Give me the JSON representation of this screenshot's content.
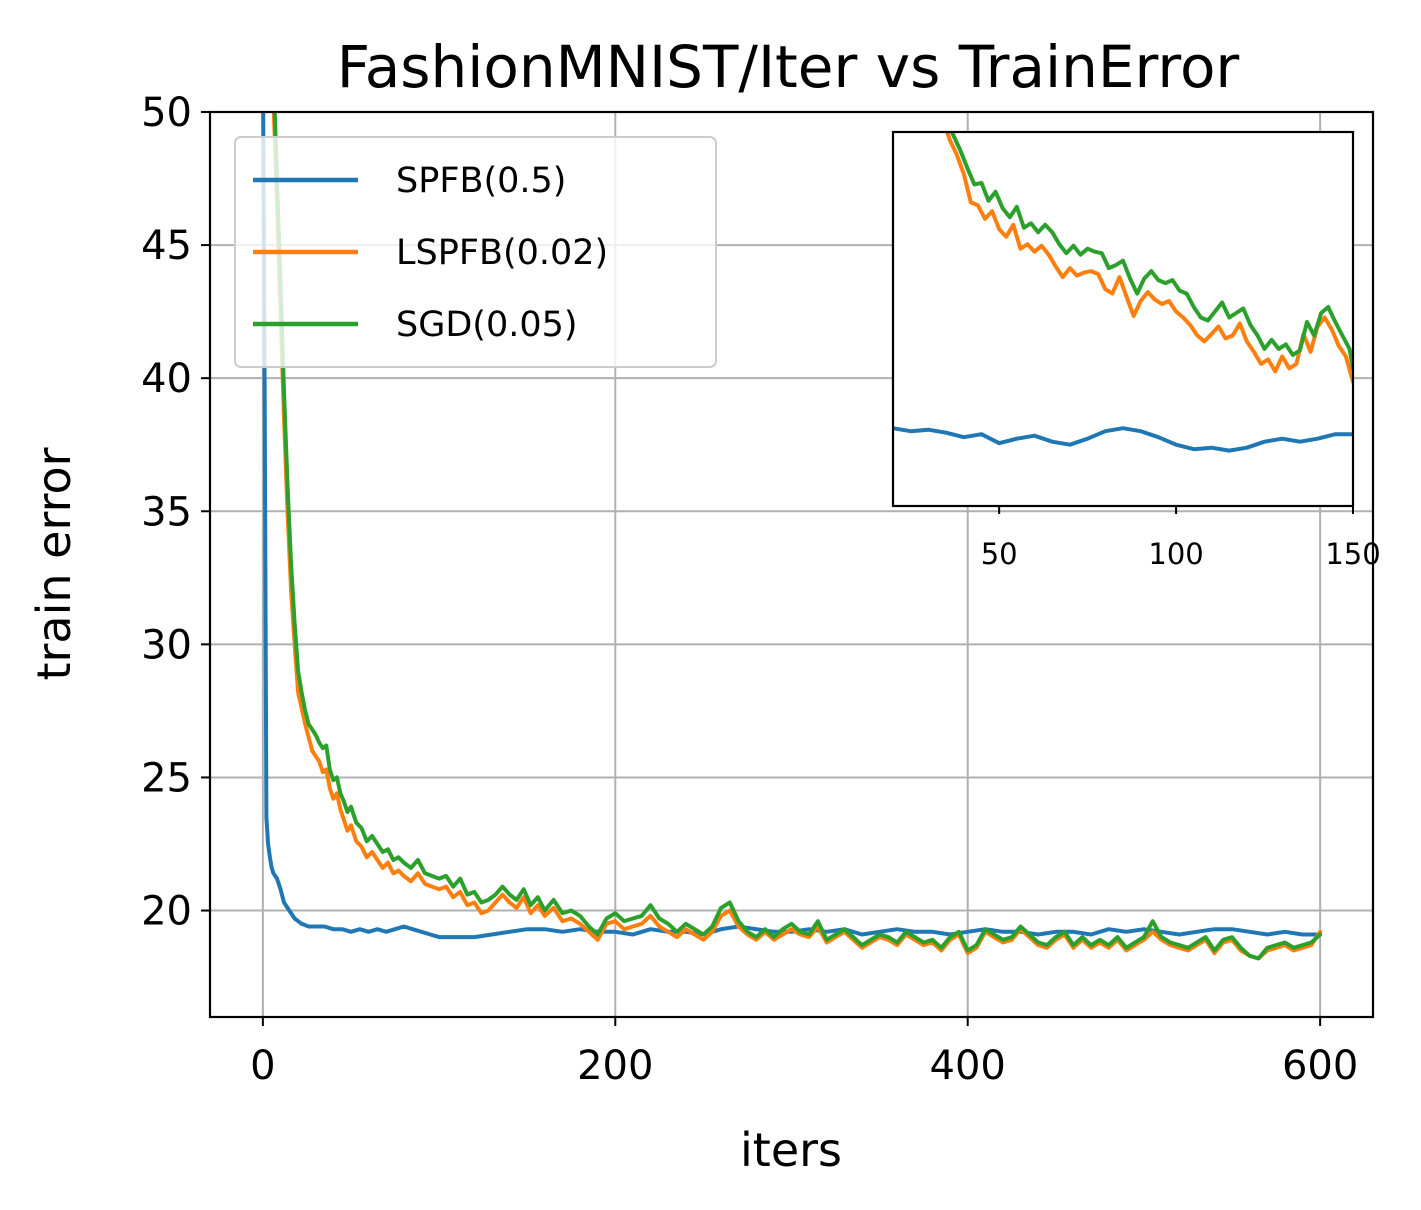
{
  "chart_data": [
    {
      "type": "line",
      "title": "FashionMNIST/Iter vs TrainError",
      "xlabel": "iters",
      "ylabel": "train error",
      "xlim": [
        -30,
        630
      ],
      "ylim": [
        16,
        50
      ],
      "xticks": [
        0,
        200,
        400,
        600
      ],
      "yticks": [
        20,
        25,
        30,
        35,
        40,
        45,
        50
      ],
      "grid": true,
      "legend": "top-left",
      "series": [
        {
          "name": "SPFB(0.5)",
          "color": "#1f77b4",
          "x": [
            0,
            1,
            2,
            3,
            4,
            5,
            6,
            8,
            10,
            12,
            15,
            18,
            22,
            26,
            30,
            35,
            40,
            45,
            50,
            55,
            60,
            65,
            70,
            75,
            80,
            85,
            90,
            95,
            100,
            110,
            120,
            130,
            140,
            150,
            160,
            170,
            180,
            190,
            200,
            210,
            220,
            230,
            240,
            250,
            260,
            270,
            280,
            290,
            300,
            310,
            320,
            330,
            340,
            350,
            360,
            370,
            380,
            390,
            400,
            410,
            420,
            430,
            440,
            450,
            460,
            470,
            480,
            490,
            500,
            510,
            520,
            530,
            540,
            550,
            560,
            570,
            580,
            590,
            600
          ],
          "y": [
            52,
            40,
            23.5,
            22.5,
            22.0,
            21.6,
            21.4,
            21.2,
            20.8,
            20.3,
            20.0,
            19.7,
            19.5,
            19.4,
            19.4,
            19.4,
            19.3,
            19.3,
            19.2,
            19.3,
            19.2,
            19.3,
            19.2,
            19.3,
            19.4,
            19.3,
            19.2,
            19.1,
            19.0,
            19.0,
            19.0,
            19.1,
            19.2,
            19.3,
            19.3,
            19.2,
            19.3,
            19.2,
            19.2,
            19.1,
            19.3,
            19.2,
            19.2,
            19.1,
            19.3,
            19.4,
            19.3,
            19.2,
            19.2,
            19.3,
            19.2,
            19.3,
            19.1,
            19.2,
            19.3,
            19.2,
            19.2,
            19.1,
            19.2,
            19.3,
            19.2,
            19.2,
            19.1,
            19.2,
            19.2,
            19.1,
            19.3,
            19.2,
            19.3,
            19.2,
            19.1,
            19.2,
            19.3,
            19.3,
            19.2,
            19.1,
            19.2,
            19.1,
            19.1
          ]
        },
        {
          "name": "LSPFB(0.02)",
          "color": "#ff7f0e",
          "x": [
            4,
            6,
            8,
            10,
            12,
            14,
            16,
            18,
            20,
            22,
            24,
            26,
            28,
            30,
            32,
            34,
            36,
            38,
            40,
            42,
            44,
            46,
            48,
            50,
            53,
            56,
            59,
            62,
            65,
            68,
            71,
            74,
            77,
            80,
            84,
            88,
            92,
            96,
            100,
            104,
            108,
            112,
            116,
            120,
            124,
            128,
            132,
            136,
            140,
            144,
            148,
            152,
            156,
            160,
            165,
            170,
            175,
            180,
            185,
            190,
            195,
            200,
            205,
            210,
            215,
            220,
            225,
            230,
            235,
            240,
            245,
            250,
            255,
            260,
            265,
            270,
            275,
            280,
            285,
            290,
            295,
            300,
            305,
            310,
            315,
            320,
            325,
            330,
            335,
            340,
            345,
            350,
            355,
            360,
            365,
            370,
            375,
            380,
            385,
            390,
            395,
            400,
            405,
            410,
            415,
            420,
            425,
            430,
            435,
            440,
            445,
            450,
            455,
            460,
            465,
            470,
            475,
            480,
            485,
            490,
            495,
            500,
            505,
            510,
            515,
            520,
            525,
            530,
            535,
            540,
            545,
            550,
            555,
            560,
            565,
            570,
            575,
            580,
            585,
            590,
            595,
            600
          ],
          "y": [
            55,
            50.5,
            46.5,
            42.5,
            38.5,
            35.0,
            32.0,
            30.0,
            28.2,
            27.6,
            27.0,
            26.5,
            26.0,
            25.8,
            25.6,
            25.2,
            25.3,
            24.6,
            24.2,
            24.4,
            23.8,
            23.4,
            23.0,
            23.2,
            22.6,
            22.4,
            22.0,
            22.2,
            21.9,
            21.6,
            21.8,
            21.4,
            21.5,
            21.3,
            21.1,
            21.4,
            21.0,
            20.9,
            20.8,
            20.9,
            20.5,
            20.7,
            20.2,
            20.3,
            19.9,
            20.0,
            20.3,
            20.6,
            20.3,
            20.1,
            20.5,
            19.9,
            20.2,
            19.8,
            20.1,
            19.6,
            19.7,
            19.5,
            19.2,
            18.9,
            19.5,
            19.6,
            19.3,
            19.4,
            19.5,
            19.8,
            19.4,
            19.2,
            19.0,
            19.3,
            19.1,
            18.9,
            19.2,
            19.8,
            20.0,
            19.4,
            19.1,
            18.9,
            19.2,
            18.9,
            19.1,
            19.3,
            19.1,
            19.0,
            19.4,
            18.8,
            19.0,
            19.2,
            18.9,
            18.6,
            18.8,
            19.0,
            18.9,
            18.7,
            19.1,
            18.9,
            18.7,
            18.8,
            18.5,
            18.9,
            19.1,
            18.4,
            18.6,
            19.2,
            19.0,
            18.8,
            18.9,
            19.3,
            19.0,
            18.7,
            18.6,
            18.9,
            19.1,
            18.6,
            18.9,
            18.6,
            18.8,
            18.6,
            18.9,
            18.5,
            18.7,
            18.9,
            19.2,
            18.9,
            18.7,
            18.6,
            18.5,
            18.7,
            18.9,
            18.4,
            18.8,
            18.9,
            18.5,
            18.3,
            18.2,
            18.5,
            18.6,
            18.7,
            18.5,
            18.6,
            18.7,
            19.2
          ]
        },
        {
          "name": "SGD(0.05)",
          "color": "#2ca02c",
          "x": [
            4,
            6,
            8,
            10,
            12,
            14,
            16,
            18,
            20,
            22,
            24,
            26,
            28,
            30,
            32,
            34,
            36,
            38,
            40,
            42,
            44,
            46,
            48,
            50,
            53,
            56,
            59,
            62,
            65,
            68,
            71,
            74,
            77,
            80,
            84,
            88,
            92,
            96,
            100,
            104,
            108,
            112,
            116,
            120,
            124,
            128,
            132,
            136,
            140,
            144,
            148,
            152,
            156,
            160,
            165,
            170,
            175,
            180,
            185,
            190,
            195,
            200,
            205,
            210,
            215,
            220,
            225,
            230,
            235,
            240,
            245,
            250,
            255,
            260,
            265,
            270,
            275,
            280,
            285,
            290,
            295,
            300,
            305,
            310,
            315,
            320,
            325,
            330,
            335,
            340,
            345,
            350,
            355,
            360,
            365,
            370,
            375,
            380,
            385,
            390,
            395,
            400,
            405,
            410,
            415,
            420,
            425,
            430,
            435,
            440,
            445,
            450,
            455,
            460,
            465,
            470,
            475,
            480,
            485,
            490,
            495,
            500,
            505,
            510,
            515,
            520,
            525,
            530,
            535,
            540,
            545,
            550,
            555,
            560,
            565,
            570,
            575,
            580,
            585,
            590,
            595,
            600
          ],
          "y": [
            56,
            51.5,
            47.5,
            43.5,
            39.5,
            36.0,
            33.0,
            30.8,
            29.0,
            28.2,
            27.5,
            27.0,
            26.8,
            26.6,
            26.3,
            26.1,
            26.2,
            25.3,
            24.9,
            25.0,
            24.4,
            24.1,
            23.7,
            23.9,
            23.3,
            23.1,
            22.6,
            22.8,
            22.5,
            22.2,
            22.3,
            21.9,
            22.0,
            21.8,
            21.6,
            21.9,
            21.4,
            21.3,
            21.2,
            21.3,
            20.9,
            21.2,
            20.6,
            20.7,
            20.3,
            20.4,
            20.6,
            20.9,
            20.6,
            20.4,
            20.8,
            20.2,
            20.5,
            20.0,
            20.4,
            19.9,
            20.0,
            19.8,
            19.4,
            19.1,
            19.7,
            19.9,
            19.6,
            19.7,
            19.8,
            20.2,
            19.7,
            19.5,
            19.2,
            19.5,
            19.3,
            19.1,
            19.4,
            20.1,
            20.3,
            19.6,
            19.2,
            19.0,
            19.3,
            19.0,
            19.3,
            19.5,
            19.2,
            19.1,
            19.6,
            18.9,
            19.1,
            19.3,
            19.0,
            18.7,
            18.9,
            19.1,
            19.0,
            18.8,
            19.2,
            19.0,
            18.8,
            18.9,
            18.6,
            19.0,
            19.2,
            18.5,
            18.7,
            19.3,
            19.1,
            18.9,
            19.0,
            19.4,
            19.1,
            18.8,
            18.7,
            19.0,
            19.2,
            18.7,
            19.0,
            18.7,
            18.9,
            18.7,
            19.0,
            18.6,
            18.8,
            19.0,
            19.6,
            19.0,
            18.8,
            18.7,
            18.6,
            18.8,
            19.0,
            18.5,
            18.9,
            19.0,
            18.6,
            18.3,
            18.2,
            18.6,
            18.7,
            18.8,
            18.6,
            18.7,
            18.8,
            19.1
          ]
        }
      ]
    },
    {
      "type": "line",
      "title": "",
      "xlabel": "",
      "ylabel": "",
      "xlim": [
        20,
        150
      ],
      "ylim": [
        5,
        30
      ],
      "xticks": [
        50,
        100,
        150
      ],
      "grid": false,
      "legend": "none",
      "series": [
        {
          "color": "#1f77b4",
          "x": [
            20,
            25,
            30,
            35,
            40,
            45,
            50,
            55,
            60,
            65,
            70,
            75,
            80,
            85,
            90,
            95,
            100,
            105,
            110,
            115,
            120,
            125,
            130,
            135,
            140,
            145,
            150
          ],
          "y": [
            10.2,
            10.0,
            10.1,
            9.9,
            9.6,
            9.8,
            9.2,
            9.5,
            9.7,
            9.3,
            9.1,
            9.5,
            10.0,
            10.2,
            10.0,
            9.6,
            9.1,
            8.8,
            8.9,
            8.7,
            8.9,
            9.3,
            9.5,
            9.3,
            9.5,
            9.8,
            9.8
          ]
        },
        {
          "color": "#ff7f0e",
          "x": [
            34,
            36,
            38,
            40,
            42,
            44,
            46,
            48,
            50,
            52,
            54,
            56,
            58,
            60,
            62,
            64,
            66,
            68,
            70,
            72,
            74,
            76,
            78,
            80,
            82,
            84,
            86,
            88,
            90,
            92,
            94,
            96,
            98,
            100,
            102,
            104,
            106,
            108,
            110,
            112,
            114,
            116,
            118,
            120,
            122,
            124,
            126,
            128,
            130,
            132,
            134,
            136,
            138,
            140,
            142,
            144,
            146,
            148,
            150
          ],
          "y": [
            31,
            29.5,
            28.5,
            27.2,
            25.3,
            25.1,
            24.2,
            24.7,
            23.5,
            23.0,
            23.8,
            22.2,
            22.5,
            22.0,
            22.4,
            21.8,
            21.0,
            20.3,
            20.9,
            20.4,
            20.6,
            20.7,
            20.5,
            19.5,
            19.2,
            20.3,
            19.0,
            17.7,
            18.7,
            19.3,
            18.8,
            18.5,
            18.7,
            18.0,
            17.6,
            17.1,
            16.4,
            16.0,
            16.5,
            17.0,
            16.2,
            16.4,
            17.2,
            16.0,
            15.3,
            14.5,
            14.8,
            14.0,
            15.0,
            14.2,
            14.5,
            16.5,
            15.3,
            17.0,
            17.6,
            16.8,
            15.7,
            15.0,
            13.3
          ]
        },
        {
          "color": "#2ca02c",
          "x": [
            35,
            37,
            39,
            41,
            43,
            45,
            47,
            49,
            51,
            53,
            55,
            57,
            59,
            61,
            63,
            65,
            67,
            69,
            71,
            73,
            75,
            77,
            79,
            81,
            83,
            85,
            87,
            89,
            91,
            93,
            95,
            97,
            99,
            101,
            103,
            105,
            107,
            109,
            111,
            113,
            115,
            117,
            119,
            121,
            123,
            125,
            127,
            129,
            131,
            133,
            135,
            137,
            139,
            141,
            143,
            145,
            147,
            149,
            150
          ],
          "y": [
            31,
            29.8,
            28.8,
            27.6,
            26.5,
            26.6,
            25.4,
            26.0,
            24.9,
            24.3,
            25.0,
            23.6,
            23.9,
            23.3,
            23.8,
            23.3,
            22.5,
            21.9,
            22.4,
            21.8,
            22.2,
            22.0,
            21.9,
            20.9,
            21.1,
            21.4,
            20.2,
            19.2,
            20.2,
            20.7,
            20.1,
            19.9,
            20.1,
            19.4,
            19.2,
            18.3,
            17.6,
            17.4,
            18.0,
            18.6,
            17.6,
            17.9,
            18.2,
            17.1,
            16.4,
            15.5,
            16.1,
            15.5,
            15.8,
            15.1,
            15.4,
            17.3,
            16.4,
            17.9,
            18.3,
            17.3,
            16.4,
            15.5,
            14.2
          ]
        }
      ]
    }
  ]
}
